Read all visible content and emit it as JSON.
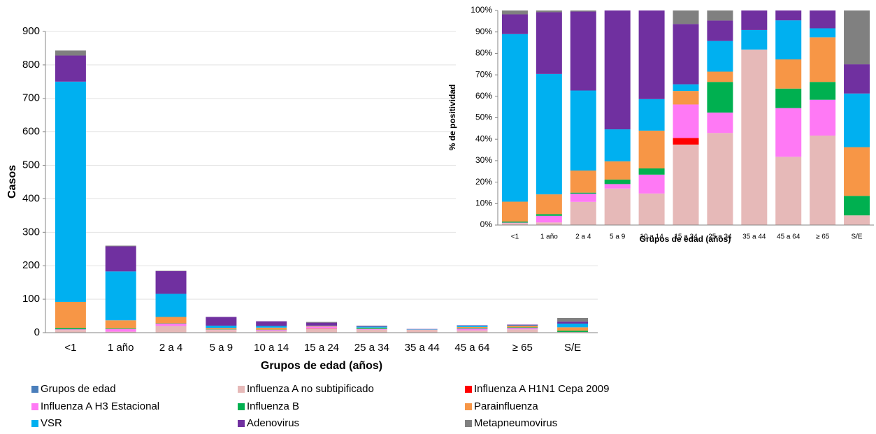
{
  "chart_data": [
    {
      "type": "bar",
      "stacked": true,
      "x_label": "Grupos de edad (años)",
      "y_label": "Casos",
      "categories": [
        "<1",
        "1 año",
        "2 a 4",
        "5 a 9",
        "10 a 14",
        "15 a 24",
        "25 a 34",
        "35 a 44",
        "45 a 64",
        "≥ 65",
        "S/E"
      ],
      "ylim": [
        0,
        900
      ],
      "yticks": [
        0,
        100,
        200,
        300,
        400,
        500,
        600,
        700,
        800,
        900
      ],
      "grid": true,
      "legend": "bottom",
      "series": [
        {
          "name": "Grupos de edad",
          "color": "#4a7ebb",
          "values": [
            0,
            0,
            0,
            0,
            0,
            0,
            0,
            0,
            0,
            0,
            0
          ]
        },
        {
          "name": "Influenza A no subtipificado",
          "color": "#e6b9b8",
          "values": [
            8,
            3,
            20,
            8,
            5,
            12,
            9,
            9,
            7,
            10,
            2
          ]
        },
        {
          "name": "Influenza A H1N1 Cepa 2009",
          "color": "#ff0000",
          "values": [
            0,
            0,
            0,
            0,
            0,
            1,
            0,
            0,
            0,
            0,
            0
          ]
        },
        {
          "name": " Influenza A H3 Estacional",
          "color": "#ff79f5",
          "values": [
            2,
            8,
            7,
            1,
            3,
            5,
            2,
            0,
            5,
            4,
            0
          ]
        },
        {
          "name": "Influenza B",
          "color": "#00b050",
          "values": [
            4,
            2,
            1,
            1,
            1,
            0,
            3,
            0,
            2,
            2,
            4
          ]
        },
        {
          "name": "Parainfluenza",
          "color": "#f79646",
          "values": [
            78,
            24,
            19,
            4,
            6,
            2,
            1,
            0,
            3,
            5,
            10
          ]
        },
        {
          "name": "VSR",
          "color": "#00b0f0",
          "values": [
            658,
            146,
            69,
            7,
            5,
            1,
            3,
            1,
            4,
            1,
            11
          ]
        },
        {
          "name": "Adenovirus",
          "color": "#7030a0",
          "values": [
            78,
            75,
            68,
            26,
            14,
            9,
            2,
            1,
            1,
            2,
            6
          ]
        },
        {
          "name": "Metapneumovirus",
          "color": "#808080",
          "values": [
            15,
            2,
            1,
            0,
            0,
            2,
            1,
            0,
            0,
            0,
            11
          ]
        }
      ]
    },
    {
      "type": "bar",
      "stacked": true,
      "x_label": "Grupos de edad (años)",
      "y_label": "% de positividad",
      "categories": [
        "<1",
        "1 año",
        "2 a 4",
        "5 a 9",
        "10 a 14",
        "15 a 24",
        "25 a 34",
        "35 a 44",
        "45 a 64",
        "≥ 65",
        "S/E"
      ],
      "ylim": [
        0,
        100
      ],
      "yticks": [
        {
          "value": 0,
          "label": "0%"
        },
        {
          "value": 10,
          "label": "10%"
        },
        {
          "value": 20,
          "label": "20%"
        },
        {
          "value": 30,
          "label": "30%"
        },
        {
          "value": 40,
          "label": "40%"
        },
        {
          "value": 50,
          "label": "50%"
        },
        {
          "value": 60,
          "label": "60%"
        },
        {
          "value": 70,
          "label": "70%"
        },
        {
          "value": 80,
          "label": "80%"
        },
        {
          "value": 90,
          "label": "90%"
        },
        {
          "value": 100,
          "label": "100%"
        }
      ],
      "grid": false,
      "series": [
        {
          "color": "#4a7ebb",
          "values": [
            0,
            0,
            0,
            0,
            0,
            0,
            0,
            0,
            0,
            0,
            0
          ]
        },
        {
          "color": "#e6b9b8",
          "values": [
            0.9,
            1.2,
            10.8,
            17.0,
            14.7,
            37.5,
            42.9,
            81.8,
            31.8,
            41.7,
            4.5
          ]
        },
        {
          "color": "#ff0000",
          "values": [
            0,
            0,
            0,
            0,
            0,
            3.1,
            0,
            0,
            0,
            0,
            0
          ]
        },
        {
          "color": "#ff79f5",
          "values": [
            0.2,
            3.1,
            3.8,
            2.1,
            8.8,
            15.6,
            9.5,
            0,
            22.7,
            16.7,
            0
          ]
        },
        {
          "color": "#00b050",
          "values": [
            0.5,
            0.8,
            0.5,
            2.1,
            2.9,
            0,
            14.3,
            0,
            9.1,
            8.3,
            9.1
          ]
        },
        {
          "color": "#f79646",
          "values": [
            9.3,
            9.2,
            10.3,
            8.5,
            17.6,
            6.3,
            4.8,
            0,
            13.6,
            20.8,
            22.7
          ]
        },
        {
          "color": "#00b0f0",
          "values": [
            78.1,
            56.1,
            37.3,
            14.9,
            14.7,
            3.1,
            14.3,
            9.1,
            18.2,
            4.2,
            25.0
          ]
        },
        {
          "color": "#7030a0",
          "values": [
            9.2,
            28.8,
            36.8,
            55.4,
            41.3,
            28.1,
            9.5,
            9.1,
            4.6,
            8.3,
            13.6
          ]
        },
        {
          "color": "#808080",
          "values": [
            1.8,
            0.8,
            0.5,
            0,
            0,
            6.3,
            4.7,
            0,
            0,
            0,
            25.1
          ]
        }
      ]
    }
  ]
}
